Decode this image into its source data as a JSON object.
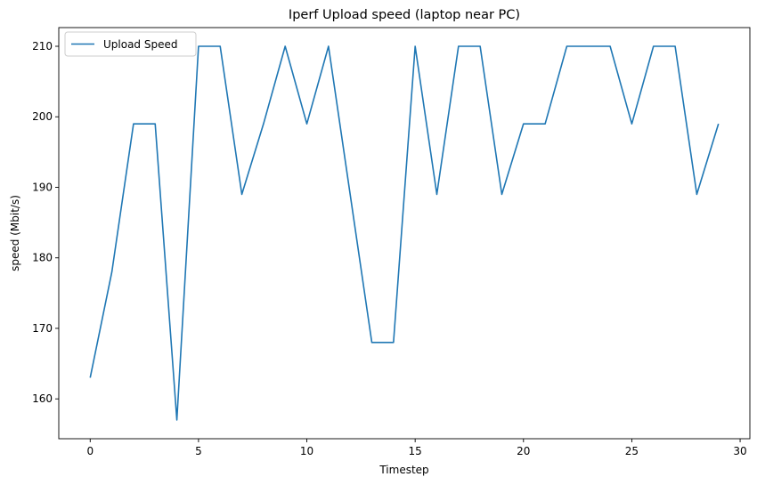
{
  "chart_data": {
    "type": "line",
    "title": "Iperf Upload speed (laptop near PC)",
    "xlabel": "Timestep",
    "ylabel": "speed (Mbit/s)",
    "xlim": [
      -1.45,
      30.45
    ],
    "ylim": [
      154.35,
      212.65
    ],
    "xticks": [
      0,
      5,
      10,
      15,
      20,
      25,
      30
    ],
    "yticks": [
      160,
      170,
      180,
      190,
      200,
      210
    ],
    "grid": false,
    "legend_position": "top-left",
    "series": [
      {
        "name": "Upload Speed",
        "color": "#1f77b4",
        "x": [
          0,
          1,
          2,
          3,
          4,
          5,
          6,
          7,
          8,
          9,
          10,
          11,
          12,
          13,
          14,
          15,
          16,
          17,
          18,
          19,
          20,
          21,
          22,
          23,
          24,
          25,
          26,
          27,
          28,
          29
        ],
        "y": [
          163,
          178,
          199,
          199,
          157,
          210,
          210,
          189,
          199,
          210,
          199,
          210,
          189,
          168,
          168,
          210,
          189,
          210,
          210,
          189,
          199,
          199,
          210,
          210,
          210,
          199,
          210,
          210,
          189,
          199
        ]
      }
    ]
  }
}
